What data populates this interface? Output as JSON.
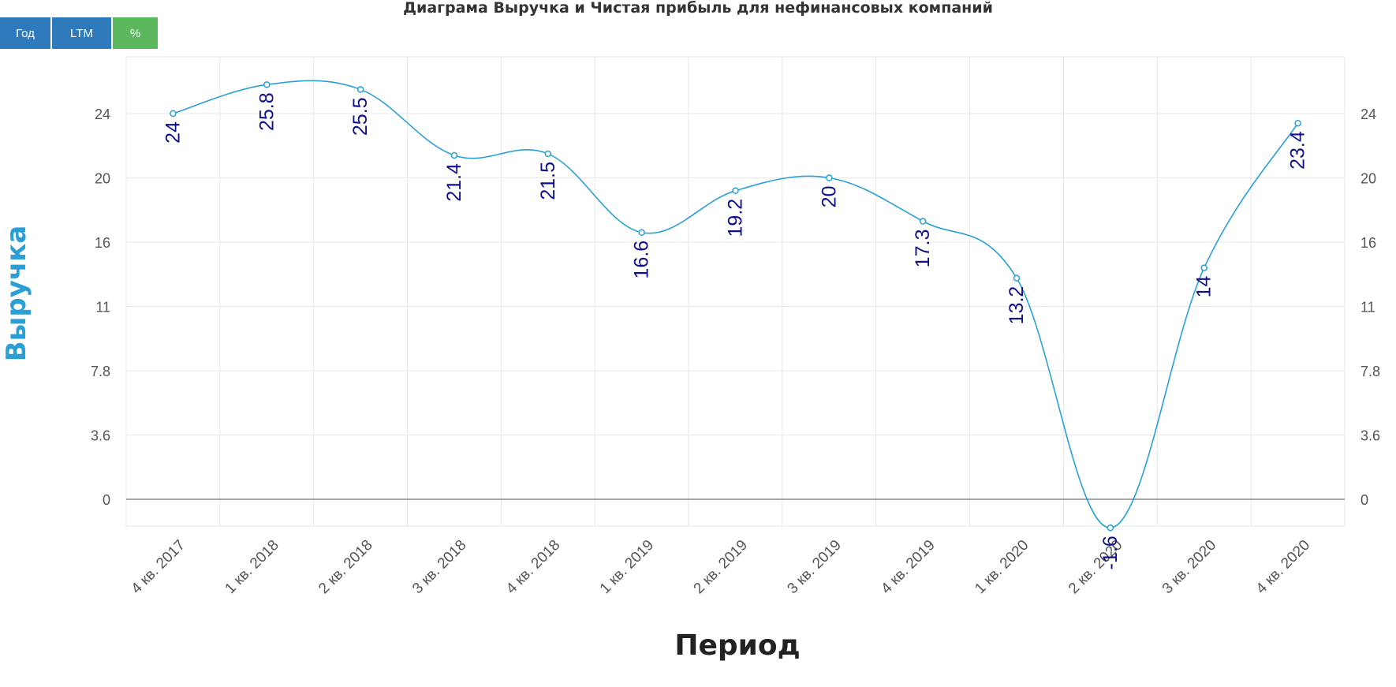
{
  "title": "Диаграма Выручка и Чистая прибыль для нефинансовых компаний",
  "buttons": {
    "year": "Год",
    "ltm": "LTM",
    "percent": "%"
  },
  "colors": {
    "button_blue": "#2f79bd",
    "button_green": "#5cb85c",
    "series_line": "#2a9fd6",
    "data_label": "#0f0f8c",
    "y_axis_title": "#2a9fd6"
  },
  "chart_data": {
    "type": "line",
    "title": "Диаграма Выручка и Чистая прибыль для нефинансовых компаний",
    "xlabel": "Период",
    "ylabel": "Выручка",
    "categories": [
      "4 кв. 2017",
      "1 кв. 2018",
      "2 кв. 2018",
      "3 кв. 2018",
      "4 кв. 2018",
      "1 кв. 2019",
      "2 кв. 2019",
      "3 кв. 2019",
      "4 кв. 2019",
      "1 кв. 2020",
      "2 кв. 2020",
      "3 кв. 2020",
      "4 кв. 2020"
    ],
    "y_ticks": [
      "0",
      "3.6",
      "7.8",
      "11",
      "16",
      "20",
      "24"
    ],
    "series": [
      {
        "values": [
          24,
          25.8,
          25.5,
          21.4,
          21.5,
          16.6,
          19.2,
          20,
          17.3,
          13.2,
          -1.6,
          14,
          23.4
        ],
        "labels": [
          "24",
          "25.8",
          "25.5",
          "21.4",
          "21.5",
          "16.6",
          "19.2",
          "20",
          "17.3",
          "13.2",
          "-1.6",
          "14",
          "23.4"
        ]
      }
    ],
    "grid": true,
    "smooth": true
  }
}
